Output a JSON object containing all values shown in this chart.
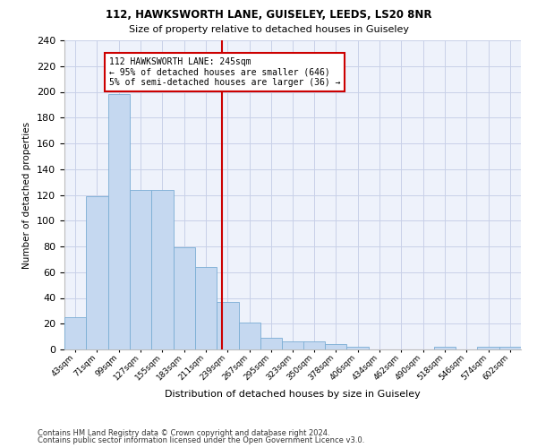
{
  "title1": "112, HAWKSWORTH LANE, GUISELEY, LEEDS, LS20 8NR",
  "title2": "Size of property relative to detached houses in Guiseley",
  "xlabel": "Distribution of detached houses by size in Guiseley",
  "ylabel": "Number of detached properties",
  "bar_color": "#c5d8f0",
  "bar_edge_color": "#7aadd4",
  "background_color": "#eef2fb",
  "grid_color": "#c8d0e8",
  "annotation_line_color": "#cc0000",
  "annotation_box_color": "#cc0000",
  "annotation_text": "112 HAWKSWORTH LANE: 245sqm\n← 95% of detached houses are smaller (646)\n5% of semi-detached houses are larger (36) →",
  "property_line_x": 245,
  "categories": [
    "43sqm",
    "71sqm",
    "99sqm",
    "127sqm",
    "155sqm",
    "183sqm",
    "211sqm",
    "239sqm",
    "267sqm",
    "295sqm",
    "323sqm",
    "350sqm",
    "378sqm",
    "406sqm",
    "434sqm",
    "462sqm",
    "490sqm",
    "518sqm",
    "546sqm",
    "574sqm",
    "602sqm"
  ],
  "bin_edges": [
    43,
    71,
    99,
    127,
    155,
    183,
    211,
    239,
    267,
    295,
    323,
    350,
    378,
    406,
    434,
    462,
    490,
    518,
    546,
    574,
    602
  ],
  "bin_width": 28,
  "values": [
    25,
    119,
    198,
    124,
    124,
    79,
    64,
    37,
    21,
    9,
    6,
    6,
    4,
    2,
    0,
    0,
    0,
    2,
    0,
    2,
    2
  ],
  "ylim": [
    0,
    240
  ],
  "yticks": [
    0,
    20,
    40,
    60,
    80,
    100,
    120,
    140,
    160,
    180,
    200,
    220,
    240
  ],
  "footer1": "Contains HM Land Registry data © Crown copyright and database right 2024.",
  "footer2": "Contains public sector information licensed under the Open Government Licence v3.0."
}
